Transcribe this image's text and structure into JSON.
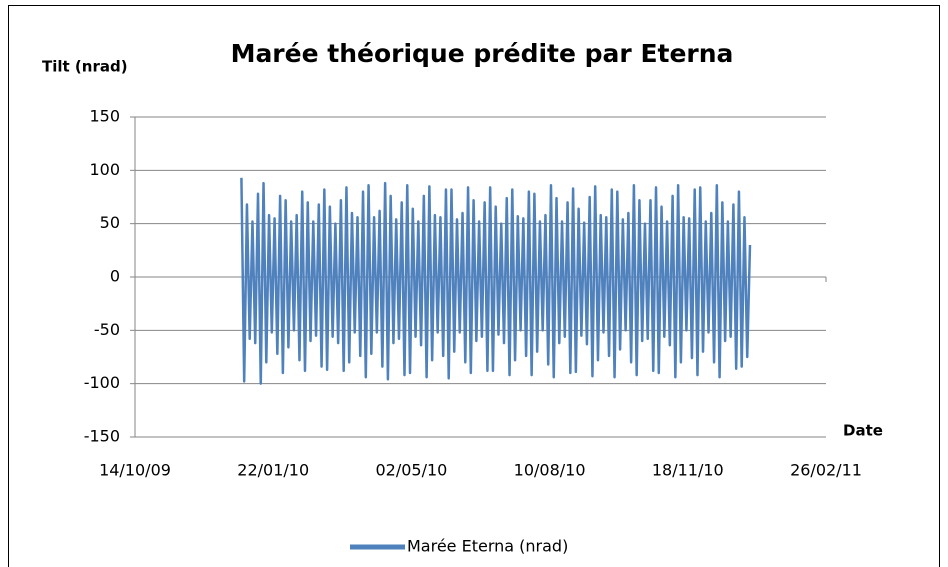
{
  "chart_data": {
    "type": "line",
    "title": "Marée théorique prédite par Eterna",
    "y_label": "Tilt (nrad)",
    "x_label": "Date",
    "xlim": [
      40100,
      40600
    ],
    "xticks": [
      {
        "value": 40100,
        "label": "14/10/09"
      },
      {
        "value": 40200,
        "label": "22/01/10"
      },
      {
        "value": 40300,
        "label": "02/05/10"
      },
      {
        "value": 40400,
        "label": "10/08/10"
      },
      {
        "value": 40500,
        "label": "18/11/10"
      },
      {
        "value": 40600,
        "label": "26/02/11"
      }
    ],
    "ylim": [
      -150,
      150
    ],
    "yticks": [
      -150,
      -100,
      -50,
      0,
      50,
      100,
      150
    ],
    "grid": true,
    "legend": "bottom",
    "x": [
      40177,
      40179,
      40181,
      40183,
      40185,
      40187,
      40189,
      40191,
      40193,
      40195,
      40197,
      40199,
      40201,
      40203,
      40205,
      40207,
      40209,
      40211,
      40213,
      40215,
      40217,
      40219,
      40221,
      40223,
      40225,
      40227,
      40229,
      40231,
      40233,
      40235,
      40237,
      40239,
      40241,
      40243,
      40245,
      40247,
      40249,
      40251,
      40253,
      40255,
      40257,
      40259,
      40261,
      40263,
      40265,
      40267,
      40269,
      40271,
      40273,
      40275,
      40277,
      40279,
      40281,
      40283,
      40285,
      40287,
      40289,
      40291,
      40293,
      40295,
      40297,
      40299,
      40301,
      40303,
      40305,
      40307,
      40309,
      40311,
      40313,
      40315,
      40317,
      40319,
      40321,
      40323,
      40325,
      40327,
      40329,
      40331,
      40333,
      40335,
      40337,
      40339,
      40341,
      40343,
      40345,
      40347,
      40349,
      40351,
      40353,
      40355,
      40357,
      40359,
      40361,
      40363,
      40365,
      40367,
      40369,
      40371,
      40373,
      40375,
      40377,
      40379,
      40381,
      40383,
      40385,
      40387,
      40389,
      40391,
      40393,
      40395,
      40397,
      40399,
      40401,
      40403,
      40405,
      40407,
      40409,
      40411,
      40413,
      40415,
      40417,
      40419,
      40421,
      40423,
      40425,
      40427,
      40429,
      40431,
      40433,
      40435,
      40437,
      40439,
      40441,
      40443,
      40445,
      40447,
      40449,
      40451,
      40453,
      40455,
      40457,
      40459,
      40461,
      40463,
      40465,
      40467,
      40469,
      40471,
      40473,
      40475,
      40477,
      40479,
      40481,
      40483,
      40485,
      40487,
      40489,
      40491,
      40493,
      40495,
      40497,
      40499,
      40501,
      40503,
      40505,
      40507,
      40509,
      40511,
      40513,
      40515,
      40517,
      40519,
      40521,
      40523,
      40525,
      40527,
      40529,
      40531,
      40533,
      40535,
      40537,
      40539,
      40541,
      40543,
      40545
    ],
    "series": [
      {
        "name": "Marée Eterna (nrad)",
        "color": "#4f81bd",
        "values": [
          93,
          -98,
          68,
          -58,
          52,
          -62,
          78,
          -100,
          88,
          -80,
          58,
          -52,
          55,
          -72,
          76,
          -90,
          72,
          -66,
          52,
          -50,
          58,
          -78,
          80,
          -88,
          70,
          -60,
          52,
          -55,
          68,
          -84,
          82,
          -87,
          66,
          -56,
          50,
          -62,
          72,
          -88,
          84,
          -80,
          60,
          -52,
          56,
          -74,
          80,
          -94,
          86,
          -72,
          56,
          -52,
          62,
          -84,
          88,
          -96,
          76,
          -62,
          54,
          -58,
          70,
          -92,
          86,
          -90,
          64,
          -56,
          52,
          -64,
          76,
          -94,
          85,
          -78,
          58,
          -52,
          56,
          -74,
          82,
          -95,
          82,
          -70,
          54,
          -52,
          60,
          -80,
          84,
          -90,
          72,
          -60,
          52,
          -56,
          70,
          -88,
          84,
          -88,
          66,
          -54,
          50,
          -62,
          74,
          -92,
          82,
          -78,
          57,
          -50,
          55,
          -74,
          80,
          -92,
          78,
          -70,
          52,
          -50,
          58,
          -82,
          86,
          -94,
          74,
          -62,
          52,
          -56,
          70,
          -90,
          83,
          -89,
          64,
          -55,
          51,
          -63,
          75,
          -93,
          85,
          -78,
          58,
          -52,
          56,
          -74,
          82,
          -94,
          80,
          -68,
          54,
          -50,
          60,
          -80,
          86,
          -92,
          72,
          -60,
          50,
          -58,
          72,
          -88,
          84,
          -90,
          66,
          -56,
          52,
          -64,
          76,
          -94,
          86,
          -80,
          56,
          -50,
          55,
          -76,
          82,
          -92,
          84,
          -70,
          52,
          -52,
          60,
          -80,
          86,
          -94,
          70,
          -60,
          52,
          -56,
          68,
          -86,
          80,
          -84,
          56,
          -75,
          30
        ]
      }
    ]
  }
}
